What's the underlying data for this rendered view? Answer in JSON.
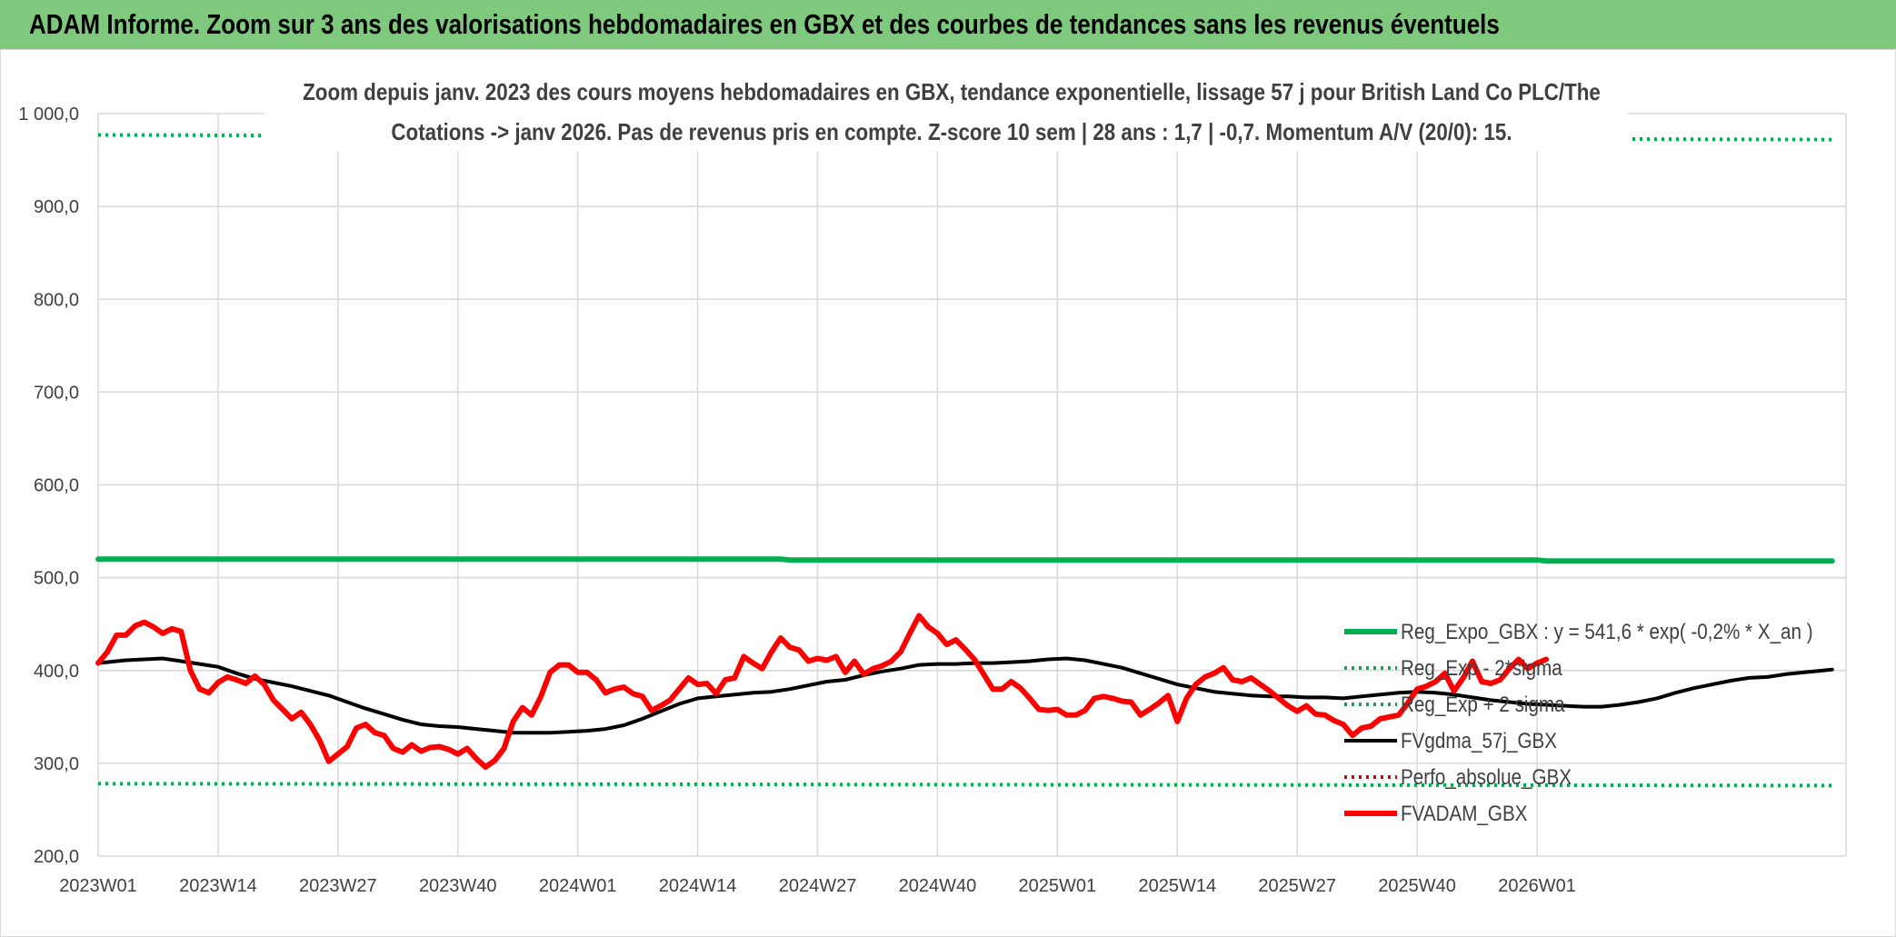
{
  "header": {
    "title": "ADAM Informe. Zoom sur 3 ans des valorisations hebdomadaires en GBX et des courbes de tendances sans les revenus éventuels"
  },
  "chart_data": {
    "type": "line",
    "subtitle": [
      "Zoom depuis janv. 2023 des cours moyens hebdomadaires en GBX, tendance exponentielle, lissage 57 j pour British Land Co PLC/The",
      "Cotations -> janv 2026. Pas de revenus pris en compte. Z-score 10 sem | 28 ans : 1,7 | -0,7. Momentum A/V (20/0): 15."
    ],
    "ylim": [
      200,
      1000
    ],
    "y_ticks": [
      "200,0",
      "300,0",
      "400,0",
      "500,0",
      "600,0",
      "700,0",
      "800,0",
      "900,0",
      "1 000,0"
    ],
    "x_ticks": [
      "2023W01",
      "2023W14",
      "2023W27",
      "2023W40",
      "2024W01",
      "2024W14",
      "2024W27",
      "2024W40",
      "2025W01",
      "2025W14",
      "2025W27",
      "2025W40",
      "2026W01"
    ],
    "grid": true,
    "legend_position": "right",
    "series": [
      {
        "name": "Reg_Expo_GBX : y = 541,6 * exp( -0,2% *  X_an )",
        "color": "#00b050",
        "style": "solid-thick",
        "points": [
          [
            0,
            520
          ],
          [
            74,
            520
          ],
          [
            75,
            519
          ],
          [
            156,
            519
          ],
          [
            157,
            518
          ],
          [
            188,
            518
          ]
        ]
      },
      {
        "name": "Reg_Exp - 2*sigma",
        "color": "#00b050",
        "style": "dotted",
        "points": [
          [
            0,
            278
          ],
          [
            188,
            276
          ]
        ]
      },
      {
        "name": "Reg_Exp + 2 sigma",
        "color": "#00b050",
        "style": "dotted",
        "points": [
          [
            0,
            977
          ],
          [
            188,
            972
          ]
        ]
      },
      {
        "name": "FVgdma_57j_GBX",
        "color": "#000000",
        "style": "solid",
        "points": [
          [
            0,
            408
          ],
          [
            3,
            411
          ],
          [
            5,
            412
          ],
          [
            7,
            413
          ],
          [
            9,
            410
          ],
          [
            11,
            407
          ],
          [
            13,
            404
          ],
          [
            15,
            397
          ],
          [
            17,
            391
          ],
          [
            19,
            387
          ],
          [
            21,
            383
          ],
          [
            23,
            378
          ],
          [
            25,
            373
          ],
          [
            27,
            366
          ],
          [
            29,
            359
          ],
          [
            31,
            353
          ],
          [
            33,
            347
          ],
          [
            35,
            342
          ],
          [
            37,
            340
          ],
          [
            39,
            339
          ],
          [
            41,
            337
          ],
          [
            43,
            335
          ],
          [
            45,
            333
          ],
          [
            47,
            333
          ],
          [
            49,
            333
          ],
          [
            51,
            334
          ],
          [
            53,
            335
          ],
          [
            55,
            337
          ],
          [
            57,
            341
          ],
          [
            59,
            348
          ],
          [
            61,
            356
          ],
          [
            63,
            364
          ],
          [
            65,
            370
          ],
          [
            67,
            372
          ],
          [
            69,
            374
          ],
          [
            71,
            376
          ],
          [
            73,
            377
          ],
          [
            75,
            380
          ],
          [
            77,
            384
          ],
          [
            79,
            388
          ],
          [
            81,
            390
          ],
          [
            83,
            395
          ],
          [
            85,
            399
          ],
          [
            87,
            402
          ],
          [
            89,
            406
          ],
          [
            91,
            407
          ],
          [
            93,
            407
          ],
          [
            95,
            408
          ],
          [
            97,
            408
          ],
          [
            99,
            409
          ],
          [
            101,
            410
          ],
          [
            103,
            412
          ],
          [
            105,
            413
          ],
          [
            107,
            411
          ],
          [
            109,
            407
          ],
          [
            111,
            403
          ],
          [
            113,
            397
          ],
          [
            115,
            391
          ],
          [
            117,
            385
          ],
          [
            119,
            381
          ],
          [
            121,
            377
          ],
          [
            123,
            375
          ],
          [
            125,
            373
          ],
          [
            127,
            372
          ],
          [
            129,
            372
          ],
          [
            131,
            371
          ],
          [
            133,
            371
          ],
          [
            135,
            370
          ],
          [
            137,
            372
          ],
          [
            139,
            374
          ],
          [
            141,
            376
          ],
          [
            143,
            377
          ],
          [
            145,
            376
          ],
          [
            147,
            374
          ],
          [
            149,
            371
          ],
          [
            151,
            368
          ],
          [
            153,
            366
          ],
          [
            155,
            364
          ],
          [
            157,
            363
          ],
          [
            159,
            362
          ],
          [
            161,
            361
          ],
          [
            163,
            361
          ],
          [
            165,
            363
          ],
          [
            167,
            366
          ],
          [
            169,
            370
          ],
          [
            171,
            376
          ],
          [
            173,
            381
          ],
          [
            175,
            385
          ],
          [
            177,
            389
          ],
          [
            179,
            392
          ],
          [
            181,
            393
          ],
          [
            183,
            396
          ],
          [
            185,
            398
          ],
          [
            188,
            401
          ]
        ]
      },
      {
        "name": "Perfo_absolue_GBX",
        "color": "#e00000",
        "style": "dotted",
        "points": []
      },
      {
        "name": "FVADAM_GBX",
        "color": "#ff0000",
        "style": "solid-thick",
        "points": [
          [
            0,
            408
          ],
          [
            1,
            420
          ],
          [
            2,
            438
          ],
          [
            3,
            438
          ],
          [
            4,
            448
          ],
          [
            5,
            452
          ],
          [
            6,
            447
          ],
          [
            7,
            440
          ],
          [
            8,
            445
          ],
          [
            9,
            442
          ],
          [
            10,
            400
          ],
          [
            11,
            380
          ],
          [
            12,
            376
          ],
          [
            13,
            387
          ],
          [
            14,
            393
          ],
          [
            15,
            390
          ],
          [
            16,
            386
          ],
          [
            17,
            394
          ],
          [
            18,
            385
          ],
          [
            19,
            368
          ],
          [
            20,
            358
          ],
          [
            21,
            348
          ],
          [
            22,
            355
          ],
          [
            23,
            342
          ],
          [
            24,
            325
          ],
          [
            25,
            302
          ],
          [
            26,
            310
          ],
          [
            27,
            318
          ],
          [
            28,
            338
          ],
          [
            29,
            342
          ],
          [
            30,
            333
          ],
          [
            31,
            330
          ],
          [
            32,
            316
          ],
          [
            33,
            312
          ],
          [
            34,
            320
          ],
          [
            35,
            313
          ],
          [
            36,
            317
          ],
          [
            37,
            318
          ],
          [
            38,
            315
          ],
          [
            39,
            310
          ],
          [
            40,
            316
          ],
          [
            41,
            305
          ],
          [
            42,
            296
          ],
          [
            43,
            303
          ],
          [
            44,
            316
          ],
          [
            45,
            345
          ],
          [
            46,
            360
          ],
          [
            47,
            352
          ],
          [
            48,
            372
          ],
          [
            49,
            398
          ],
          [
            50,
            406
          ],
          [
            51,
            406
          ],
          [
            52,
            398
          ],
          [
            53,
            398
          ],
          [
            54,
            390
          ],
          [
            55,
            376
          ],
          [
            56,
            380
          ],
          [
            57,
            382
          ],
          [
            58,
            375
          ],
          [
            59,
            372
          ],
          [
            60,
            357
          ],
          [
            61,
            362
          ],
          [
            62,
            368
          ],
          [
            63,
            380
          ],
          [
            64,
            392
          ],
          [
            65,
            385
          ],
          [
            66,
            386
          ],
          [
            67,
            375
          ],
          [
            68,
            390
          ],
          [
            69,
            392
          ],
          [
            70,
            415
          ],
          [
            71,
            408
          ],
          [
            72,
            402
          ],
          [
            73,
            420
          ],
          [
            74,
            435
          ],
          [
            75,
            425
          ],
          [
            76,
            422
          ],
          [
            77,
            410
          ],
          [
            78,
            413
          ],
          [
            79,
            411
          ],
          [
            80,
            415
          ],
          [
            81,
            398
          ],
          [
            82,
            410
          ],
          [
            83,
            396
          ],
          [
            84,
            402
          ],
          [
            85,
            405
          ],
          [
            86,
            410
          ],
          [
            87,
            420
          ],
          [
            88,
            440
          ],
          [
            89,
            459
          ],
          [
            90,
            447
          ],
          [
            91,
            440
          ],
          [
            92,
            428
          ],
          [
            93,
            433
          ],
          [
            94,
            423
          ],
          [
            95,
            412
          ],
          [
            96,
            396
          ],
          [
            97,
            380
          ],
          [
            98,
            380
          ],
          [
            99,
            388
          ],
          [
            100,
            381
          ],
          [
            101,
            370
          ],
          [
            102,
            358
          ],
          [
            103,
            357
          ],
          [
            104,
            358
          ],
          [
            105,
            352
          ],
          [
            106,
            352
          ],
          [
            107,
            357
          ],
          [
            108,
            370
          ],
          [
            109,
            372
          ],
          [
            110,
            370
          ],
          [
            111,
            367
          ],
          [
            112,
            366
          ],
          [
            113,
            352
          ],
          [
            114,
            358
          ],
          [
            115,
            365
          ],
          [
            116,
            373
          ],
          [
            117,
            345
          ],
          [
            118,
            370
          ],
          [
            119,
            385
          ],
          [
            120,
            393
          ],
          [
            121,
            397
          ],
          [
            122,
            403
          ],
          [
            123,
            390
          ],
          [
            124,
            388
          ],
          [
            125,
            392
          ],
          [
            126,
            385
          ],
          [
            127,
            378
          ],
          [
            128,
            370
          ],
          [
            129,
            362
          ],
          [
            130,
            356
          ],
          [
            131,
            362
          ],
          [
            132,
            353
          ],
          [
            133,
            352
          ],
          [
            134,
            346
          ],
          [
            135,
            342
          ],
          [
            136,
            330
          ],
          [
            137,
            338
          ],
          [
            138,
            340
          ],
          [
            139,
            348
          ],
          [
            140,
            350
          ],
          [
            141,
            352
          ],
          [
            142,
            365
          ],
          [
            143,
            380
          ],
          [
            144,
            383
          ],
          [
            145,
            388
          ],
          [
            146,
            397
          ],
          [
            147,
            378
          ],
          [
            148,
            392
          ],
          [
            149,
            410
          ],
          [
            150,
            388
          ],
          [
            151,
            386
          ],
          [
            152,
            390
          ],
          [
            153,
            402
          ],
          [
            154,
            412
          ],
          [
            155,
            402
          ],
          [
            156,
            408
          ],
          [
            157,
            412
          ]
        ]
      }
    ]
  }
}
